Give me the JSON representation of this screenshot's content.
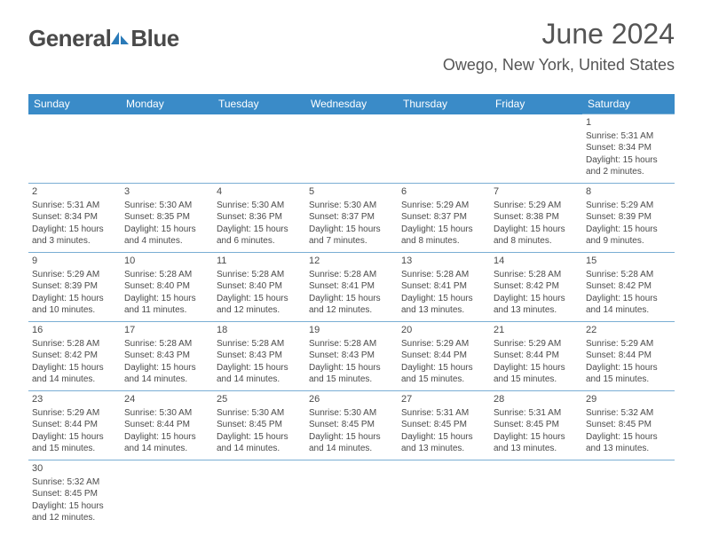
{
  "logo": {
    "part1": "General",
    "part2": "Blue"
  },
  "title": "June 2024",
  "location": "Owego, New York, United States",
  "colors": {
    "header_bg": "#3a8bc8",
    "header_fg": "#ffffff",
    "border": "#7aaed4",
    "text": "#4a4a4a",
    "logo_gray": "#4a4a4a",
    "logo_blue": "#2a7ab8"
  },
  "weekdays": [
    "Sunday",
    "Monday",
    "Tuesday",
    "Wednesday",
    "Thursday",
    "Friday",
    "Saturday"
  ],
  "first_day_index": 6,
  "days": [
    {
      "n": 1,
      "sunrise": "5:31 AM",
      "sunset": "8:34 PM",
      "daylight": "15 hours and 2 minutes."
    },
    {
      "n": 2,
      "sunrise": "5:31 AM",
      "sunset": "8:34 PM",
      "daylight": "15 hours and 3 minutes."
    },
    {
      "n": 3,
      "sunrise": "5:30 AM",
      "sunset": "8:35 PM",
      "daylight": "15 hours and 4 minutes."
    },
    {
      "n": 4,
      "sunrise": "5:30 AM",
      "sunset": "8:36 PM",
      "daylight": "15 hours and 6 minutes."
    },
    {
      "n": 5,
      "sunrise": "5:30 AM",
      "sunset": "8:37 PM",
      "daylight": "15 hours and 7 minutes."
    },
    {
      "n": 6,
      "sunrise": "5:29 AM",
      "sunset": "8:37 PM",
      "daylight": "15 hours and 8 minutes."
    },
    {
      "n": 7,
      "sunrise": "5:29 AM",
      "sunset": "8:38 PM",
      "daylight": "15 hours and 8 minutes."
    },
    {
      "n": 8,
      "sunrise": "5:29 AM",
      "sunset": "8:39 PM",
      "daylight": "15 hours and 9 minutes."
    },
    {
      "n": 9,
      "sunrise": "5:29 AM",
      "sunset": "8:39 PM",
      "daylight": "15 hours and 10 minutes."
    },
    {
      "n": 10,
      "sunrise": "5:28 AM",
      "sunset": "8:40 PM",
      "daylight": "15 hours and 11 minutes."
    },
    {
      "n": 11,
      "sunrise": "5:28 AM",
      "sunset": "8:40 PM",
      "daylight": "15 hours and 12 minutes."
    },
    {
      "n": 12,
      "sunrise": "5:28 AM",
      "sunset": "8:41 PM",
      "daylight": "15 hours and 12 minutes."
    },
    {
      "n": 13,
      "sunrise": "5:28 AM",
      "sunset": "8:41 PM",
      "daylight": "15 hours and 13 minutes."
    },
    {
      "n": 14,
      "sunrise": "5:28 AM",
      "sunset": "8:42 PM",
      "daylight": "15 hours and 13 minutes."
    },
    {
      "n": 15,
      "sunrise": "5:28 AM",
      "sunset": "8:42 PM",
      "daylight": "15 hours and 14 minutes."
    },
    {
      "n": 16,
      "sunrise": "5:28 AM",
      "sunset": "8:42 PM",
      "daylight": "15 hours and 14 minutes."
    },
    {
      "n": 17,
      "sunrise": "5:28 AM",
      "sunset": "8:43 PM",
      "daylight": "15 hours and 14 minutes."
    },
    {
      "n": 18,
      "sunrise": "5:28 AM",
      "sunset": "8:43 PM",
      "daylight": "15 hours and 14 minutes."
    },
    {
      "n": 19,
      "sunrise": "5:28 AM",
      "sunset": "8:43 PM",
      "daylight": "15 hours and 15 minutes."
    },
    {
      "n": 20,
      "sunrise": "5:29 AM",
      "sunset": "8:44 PM",
      "daylight": "15 hours and 15 minutes."
    },
    {
      "n": 21,
      "sunrise": "5:29 AM",
      "sunset": "8:44 PM",
      "daylight": "15 hours and 15 minutes."
    },
    {
      "n": 22,
      "sunrise": "5:29 AM",
      "sunset": "8:44 PM",
      "daylight": "15 hours and 15 minutes."
    },
    {
      "n": 23,
      "sunrise": "5:29 AM",
      "sunset": "8:44 PM",
      "daylight": "15 hours and 15 minutes."
    },
    {
      "n": 24,
      "sunrise": "5:30 AM",
      "sunset": "8:44 PM",
      "daylight": "15 hours and 14 minutes."
    },
    {
      "n": 25,
      "sunrise": "5:30 AM",
      "sunset": "8:45 PM",
      "daylight": "15 hours and 14 minutes."
    },
    {
      "n": 26,
      "sunrise": "5:30 AM",
      "sunset": "8:45 PM",
      "daylight": "15 hours and 14 minutes."
    },
    {
      "n": 27,
      "sunrise": "5:31 AM",
      "sunset": "8:45 PM",
      "daylight": "15 hours and 13 minutes."
    },
    {
      "n": 28,
      "sunrise": "5:31 AM",
      "sunset": "8:45 PM",
      "daylight": "15 hours and 13 minutes."
    },
    {
      "n": 29,
      "sunrise": "5:32 AM",
      "sunset": "8:45 PM",
      "daylight": "15 hours and 13 minutes."
    },
    {
      "n": 30,
      "sunrise": "5:32 AM",
      "sunset": "8:45 PM",
      "daylight": "15 hours and 12 minutes."
    }
  ],
  "labels": {
    "sunrise": "Sunrise:",
    "sunset": "Sunset:",
    "daylight": "Daylight:"
  }
}
